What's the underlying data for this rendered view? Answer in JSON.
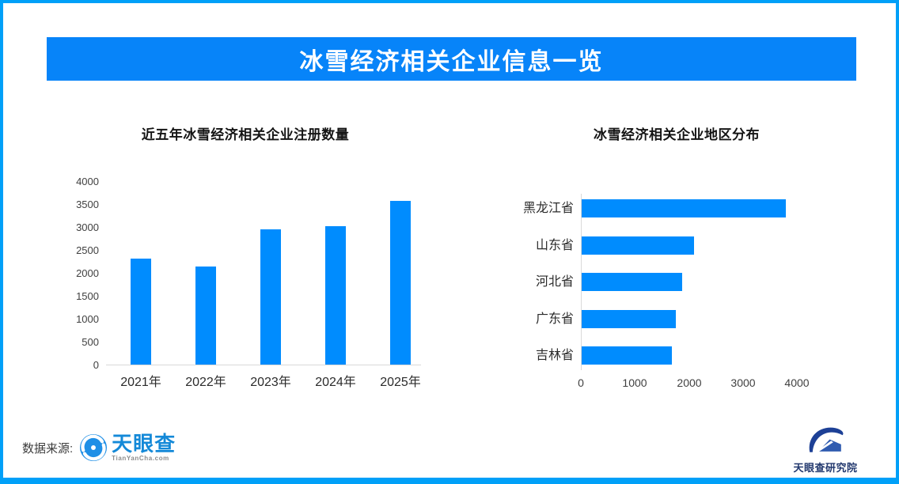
{
  "page": {
    "title": "冰雪经济相关企业信息一览",
    "source_label": "数据来源:",
    "brand": {
      "name": "天眼查",
      "domain": "TianYanCha.com",
      "institute": "天眼查研究院"
    },
    "colors": {
      "frame": "#00A0F8",
      "banner": "#0784F9",
      "bar": "#008CFE",
      "brand_blue": "#1489D8",
      "institute_navy": "#22386E"
    }
  },
  "chart_data": [
    {
      "type": "bar",
      "orientation": "vertical",
      "title": "近五年冰雪经济相关企业注册数量",
      "categories": [
        "2021年",
        "2022年",
        "2023年",
        "2024年",
        "2025年"
      ],
      "values": [
        2310,
        2130,
        2950,
        3020,
        3570
      ],
      "ylim": [
        0,
        4000
      ],
      "y_ticks": [
        4000,
        3500,
        3000,
        2500,
        2000,
        1500,
        1000,
        500,
        0
      ],
      "grid": false,
      "legend": false,
      "bar_color": "#008CFE"
    },
    {
      "type": "bar",
      "orientation": "horizontal",
      "title": "冰雪经济相关企业地区分布",
      "categories": [
        "黑龙江省",
        "山东省",
        "河北省",
        "广东省",
        "吉林省"
      ],
      "values": [
        3780,
        2080,
        1860,
        1740,
        1670
      ],
      "xlim": [
        0,
        4000
      ],
      "x_ticks": [
        0,
        1000,
        2000,
        3000,
        4000
      ],
      "grid": false,
      "legend": false,
      "bar_color": "#008CFE"
    }
  ]
}
